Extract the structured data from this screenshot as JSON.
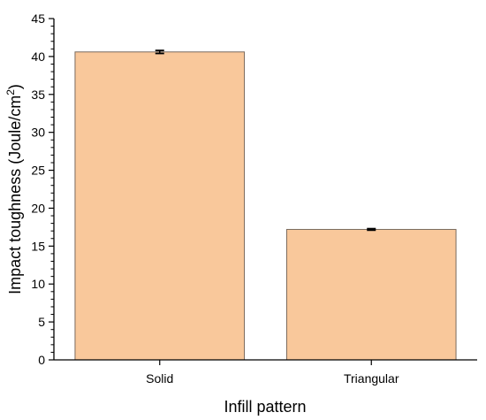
{
  "chart_data": {
    "type": "bar",
    "title": "",
    "xlabel": "Infill pattern",
    "ylabel": "Impact toughness (Joule/cm",
    "ylabel_superscript": "2",
    "ylabel_close": ")",
    "categories": [
      "Solid",
      "Triangular"
    ],
    "series": [
      {
        "values": [
          40.6,
          17.2
        ],
        "errors": [
          0.2,
          0.1
        ]
      }
    ],
    "ylim": [
      0,
      45
    ],
    "yticks": [
      "0",
      "5",
      "10",
      "15",
      "20",
      "25",
      "30",
      "35",
      "40",
      "45"
    ],
    "grid": false,
    "colors": {
      "bar_fill": "#F9C89B",
      "bar_stroke": "#7a6a5e",
      "axis": "#000000"
    }
  }
}
